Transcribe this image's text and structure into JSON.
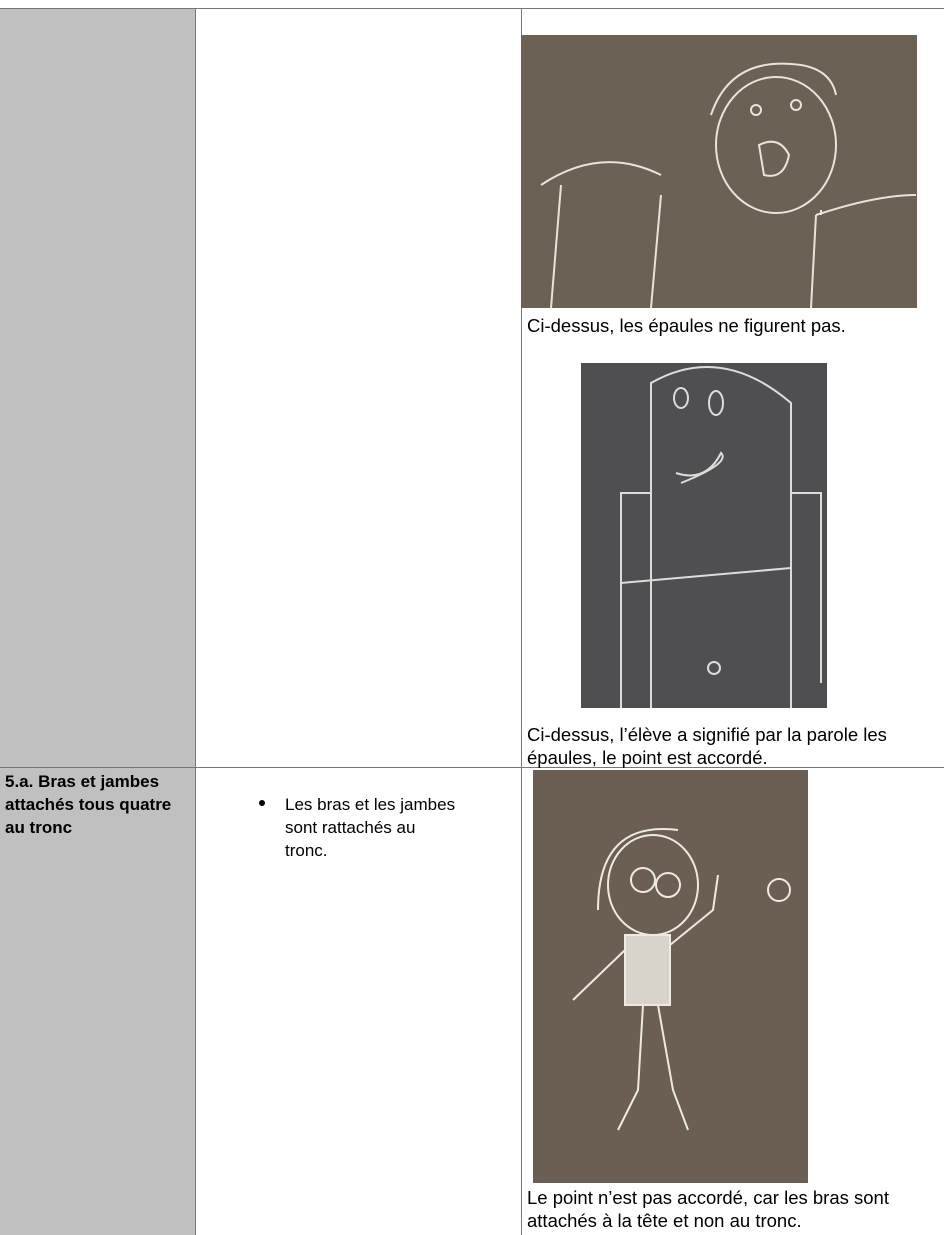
{
  "table": {
    "rows": [
      {
        "captions": [
          "Ci-dessus, les épaules ne figurent pas.",
          "Ci-dessus, l’élève a signifié par la parole les épaules, le point est accordé."
        ]
      },
      {
        "criterion": "5.a. Bras et jambes attachés tous quatre au tronc",
        "bullets": [
          "Les bras et les jambes sont rattachés au tronc."
        ],
        "captions": [
          "Le point n’est pas accordé, car les bras sont attachés à la tête et non au tronc."
        ]
      }
    ]
  }
}
